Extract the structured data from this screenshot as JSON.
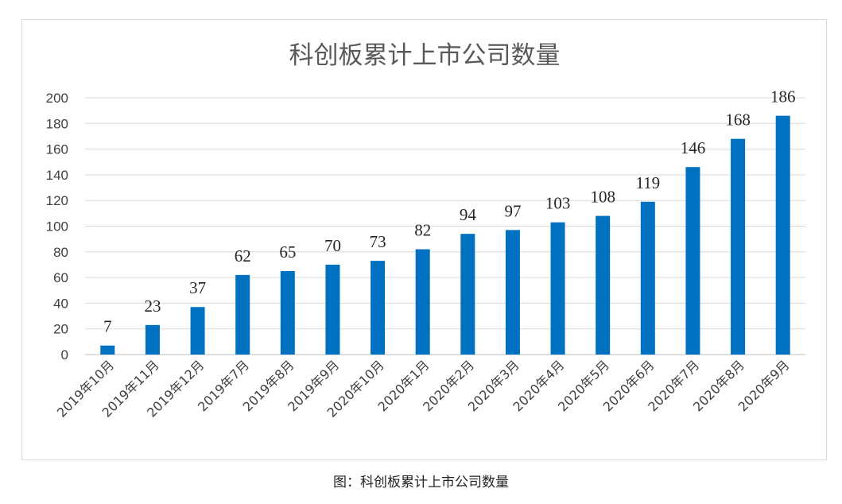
{
  "caption": "图：科创板累计上市公司数量",
  "colors": {
    "bar": "#0070c0",
    "grid": "#d9d9d9",
    "axis": "#bfbfbf"
  },
  "chart_data": {
    "type": "bar",
    "title": "科创板累计上市公司数量",
    "xlabel": "",
    "ylabel": "",
    "ylim": [
      0,
      200
    ],
    "yticks": [
      0,
      20,
      40,
      60,
      80,
      100,
      120,
      140,
      160,
      180,
      200
    ],
    "grid": true,
    "legend": "none",
    "categories": [
      "2019年10月",
      "2019年11月",
      "2019年12月",
      "2019年7月",
      "2019年8月",
      "2019年9月",
      "2020年10月",
      "2020年1月",
      "2020年2月",
      "2020年3月",
      "2020年4月",
      "2020年5月",
      "2020年6月",
      "2020年7月",
      "2020年8月",
      "2020年9月"
    ],
    "values": [
      7,
      23,
      37,
      62,
      65,
      70,
      73,
      82,
      94,
      97,
      103,
      108,
      119,
      146,
      168,
      186
    ]
  }
}
